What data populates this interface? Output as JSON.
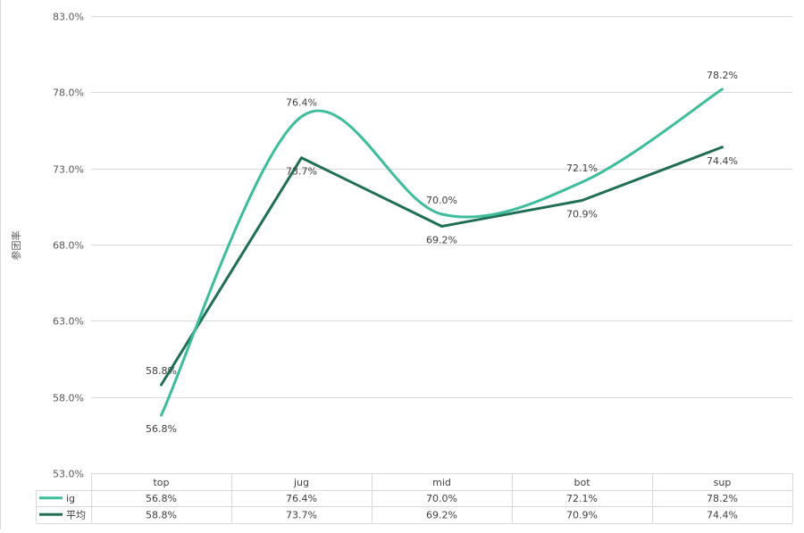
{
  "chart_data": {
    "type": "line",
    "title": "",
    "xlabel": "",
    "ylabel": "参团率",
    "categories": [
      "top",
      "jug",
      "mid",
      "bot",
      "sup"
    ],
    "ylim": [
      53.0,
      83.0
    ],
    "yticks": [
      53.0,
      58.0,
      63.0,
      68.0,
      73.0,
      78.0,
      83.0
    ],
    "ytick_labels": [
      "53.0%",
      "58.0%",
      "63.0%",
      "68.0%",
      "73.0%",
      "78.0%",
      "83.0%"
    ],
    "grid": true,
    "series": [
      {
        "name": "ig",
        "values": [
          56.8,
          76.4,
          70.0,
          72.1,
          78.2
        ],
        "labels": [
          "56.8%",
          "76.4%",
          "70.0%",
          "72.1%",
          "78.2%"
        ],
        "color": "#3dbd9c",
        "smooth": true
      },
      {
        "name": "平均",
        "values": [
          58.8,
          73.7,
          69.2,
          70.9,
          74.4
        ],
        "labels": [
          "58.8%",
          "73.7%",
          "69.2%",
          "70.9%",
          "74.4%"
        ],
        "color": "#216e57",
        "smooth": false
      }
    ],
    "data_table": true
  }
}
